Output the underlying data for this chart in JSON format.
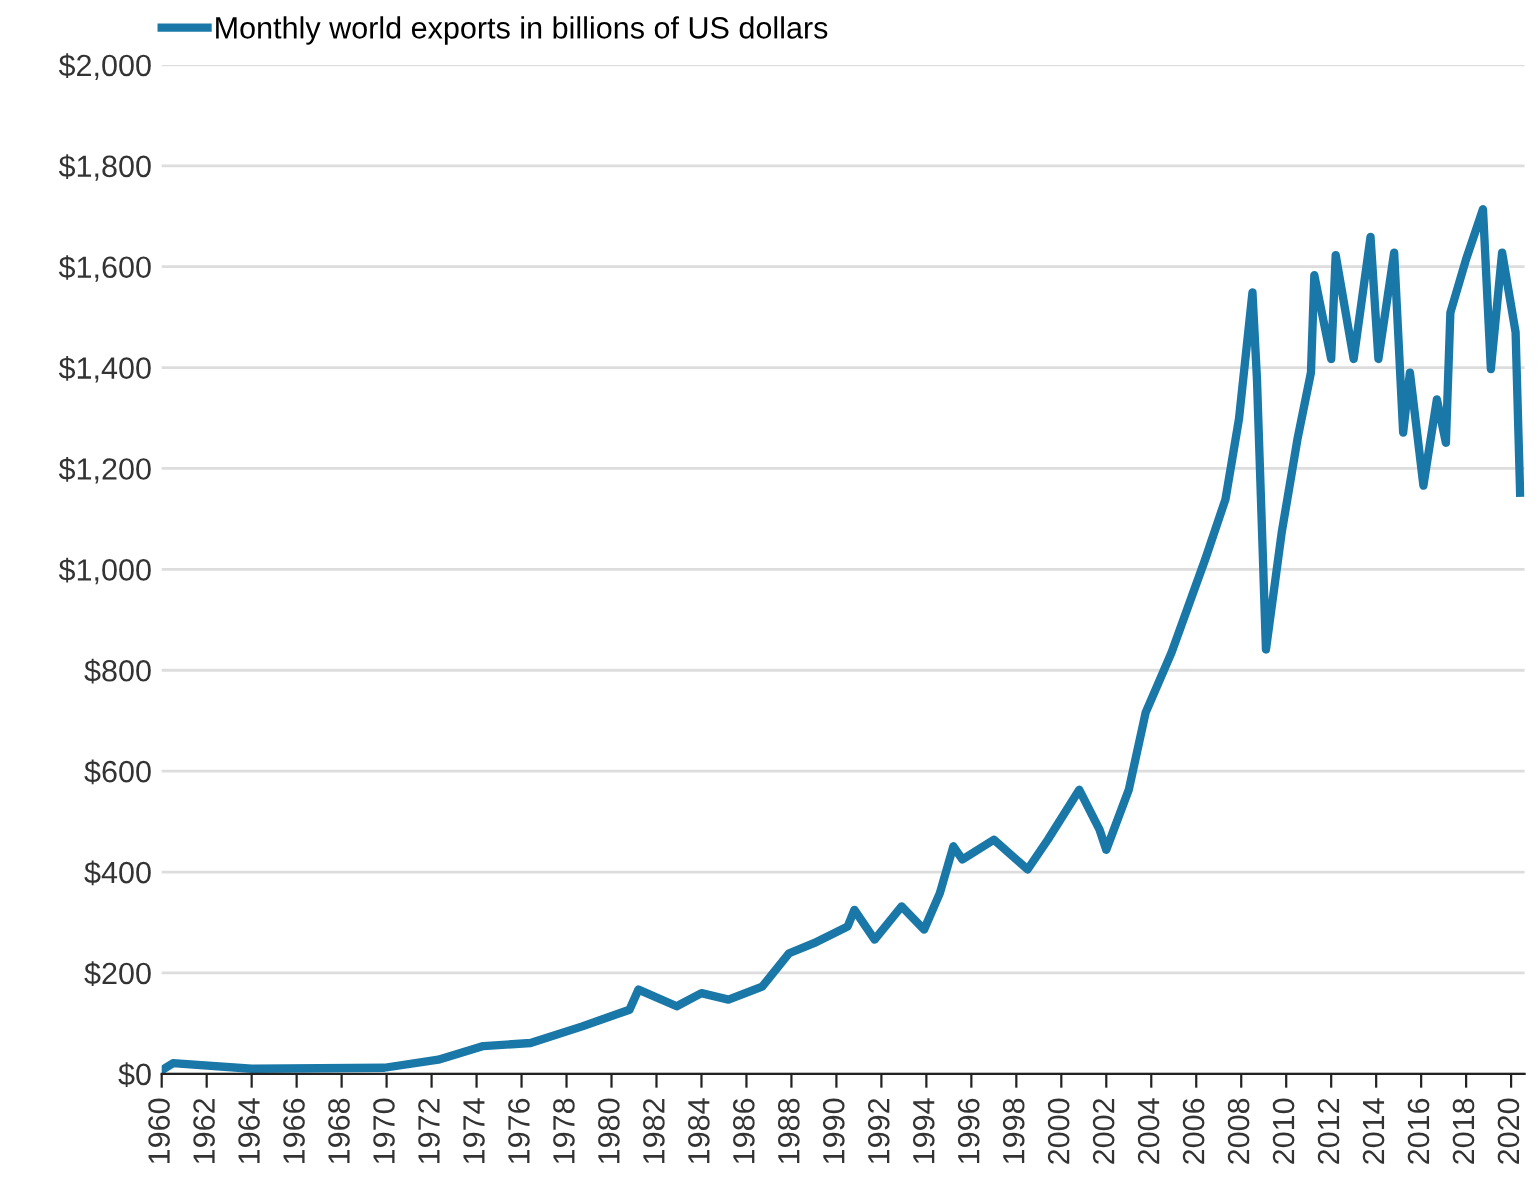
{
  "chart_data": {
    "type": "line",
    "x": [
      1960,
      1960.5,
      1964,
      1969.9,
      1972.3,
      1974.3,
      1976.4,
      1978.7,
      1980.8,
      1981.2,
      1982.9,
      1984.0,
      1985.2,
      1986.7,
      1987.9,
      1989.0,
      1990.5,
      1990.8,
      1991.7,
      1992.9,
      1993.9,
      1994.6,
      1995.2,
      1995.6,
      1997.0,
      1998.5,
      1999.4,
      2000.8,
      2001.7,
      2002.0,
      2003.0,
      2003.75,
      2004.9,
      2006.4,
      2007.3,
      2007.9,
      2008.5,
      2008.7,
      2009.1,
      2009.8,
      2010.5,
      2011.1,
      2011.25,
      2012.0,
      2012.2,
      2013.0,
      2013.75,
      2014.1,
      2014.8,
      2015.2,
      2015.5,
      2016.1,
      2016.7,
      2017.1,
      2017.3,
      2018.0,
      2018.75,
      2019.1,
      2019.6,
      2020.2,
      2020.4
    ],
    "series": [
      {
        "name": "Monthly world exports in billions of US dollars",
        "color": "#1a78a8",
        "values": [
          7,
          21,
          10,
          12,
          28,
          55,
          61,
          94,
          127,
          167,
          134,
          160,
          147,
          173,
          239,
          259,
          292,
          325,
          266,
          332,
          286,
          358,
          451,
          425,
          464,
          405,
          464,
          563,
          484,
          444,
          563,
          716,
          835,
          1020,
          1139,
          1298,
          1549,
          1377,
          841,
          1073,
          1258,
          1390,
          1583,
          1417,
          1623,
          1417,
          1659,
          1417,
          1628,
          1271,
          1390,
          1166,
          1337,
          1251,
          1509,
          1615,
          1714,
          1397,
          1628,
          1470,
          1152
        ]
      }
    ],
    "xlim": [
      1960,
      2020.6
    ],
    "xticks": [
      1960,
      1962,
      1964,
      1966,
      1968,
      1970,
      1972,
      1974,
      1976,
      1978,
      1980,
      1982,
      1984,
      1986,
      1988,
      1990,
      1992,
      1994,
      1996,
      1998,
      2000,
      2002,
      2004,
      2006,
      2008,
      2010,
      2012,
      2014,
      2016,
      2018,
      2020
    ],
    "ylim": [
      0,
      2000
    ],
    "yticks": [
      {
        "value": 0,
        "label": "$0"
      },
      {
        "value": 200,
        "label": "$200"
      },
      {
        "value": 400,
        "label": "$400"
      },
      {
        "value": 600,
        "label": "$600"
      },
      {
        "value": 800,
        "label": "$800"
      },
      {
        "value": 1000,
        "label": "$1,000"
      },
      {
        "value": 1200,
        "label": "$1,200"
      },
      {
        "value": 1400,
        "label": "$1,400"
      },
      {
        "value": 1600,
        "label": "$1,600"
      },
      {
        "value": 1800,
        "label": "$1,800"
      },
      {
        "value": 2000,
        "label": "$2,000"
      }
    ],
    "grid": "y",
    "legend": "top left",
    "line_style": "solid",
    "marker": "none"
  }
}
